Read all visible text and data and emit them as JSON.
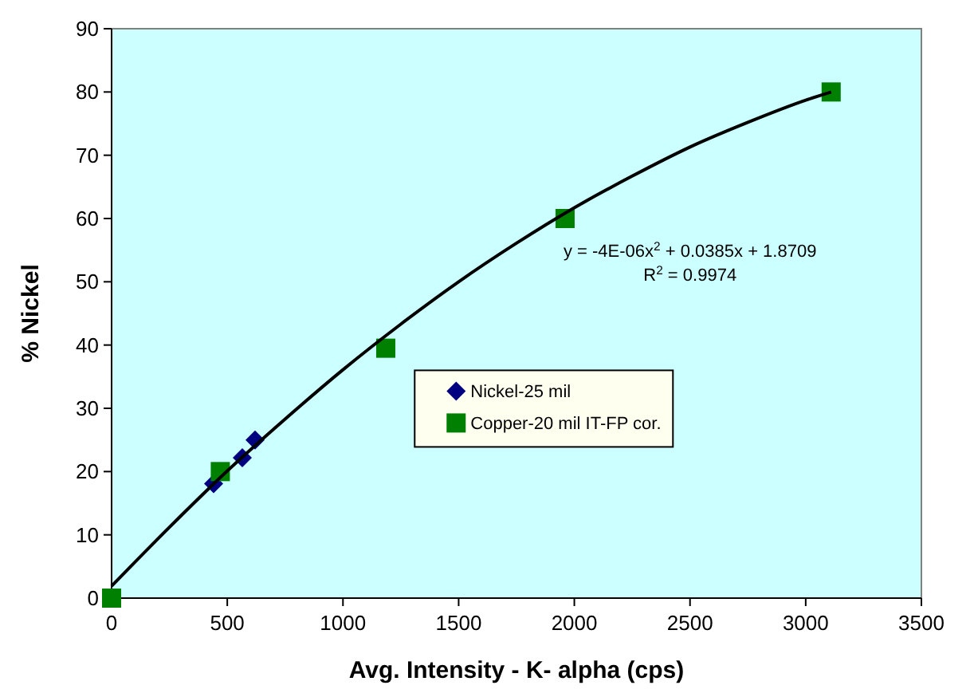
{
  "chart_data": {
    "type": "scatter",
    "xlabel": "Avg. Intensity - K- alpha (cps)",
    "ylabel": "% Nickel",
    "xlim": [
      0,
      3500
    ],
    "xticks": [
      0,
      500,
      1000,
      1500,
      2000,
      2500,
      3000,
      3500
    ],
    "ylim": [
      0,
      90
    ],
    "yticks": [
      0,
      10,
      20,
      30,
      40,
      50,
      60,
      70,
      80,
      90
    ],
    "grid": false,
    "legend": "right",
    "series": [
      {
        "name": "Nickel-25 mil",
        "color": "#000080",
        "marker": "diamond",
        "x": [
          441,
          565,
          620
        ],
        "values": [
          18.1,
          22.2,
          25
        ]
      },
      {
        "name": "Copper-20 mil IT-FP cor.",
        "color": "#008000",
        "marker": "square",
        "x": [
          0,
          470,
          1185,
          1960,
          3110
        ],
        "values": [
          0,
          20,
          39.5,
          60,
          80
        ]
      },
      {
        "type": "line",
        "color": "#000000",
        "marker": "none",
        "line_style": "solid",
        "x": [
          0,
          250,
          500,
          750,
          1000,
          1250,
          1500,
          1750,
          2000,
          2250,
          2500,
          2750,
          3000,
          3110
        ],
        "values": [
          1.9,
          11.2,
          20.1,
          28.3,
          36.1,
          43.3,
          50,
          56.1,
          61.7,
          66.7,
          71.3,
          75.2,
          78.7,
          80
        ]
      }
    ],
    "annotations": [
      "y = -4E-06x$^{2}$ + 0.0385x + 1.8709",
      "R$^{2}$ = 0.9974"
    ]
  }
}
